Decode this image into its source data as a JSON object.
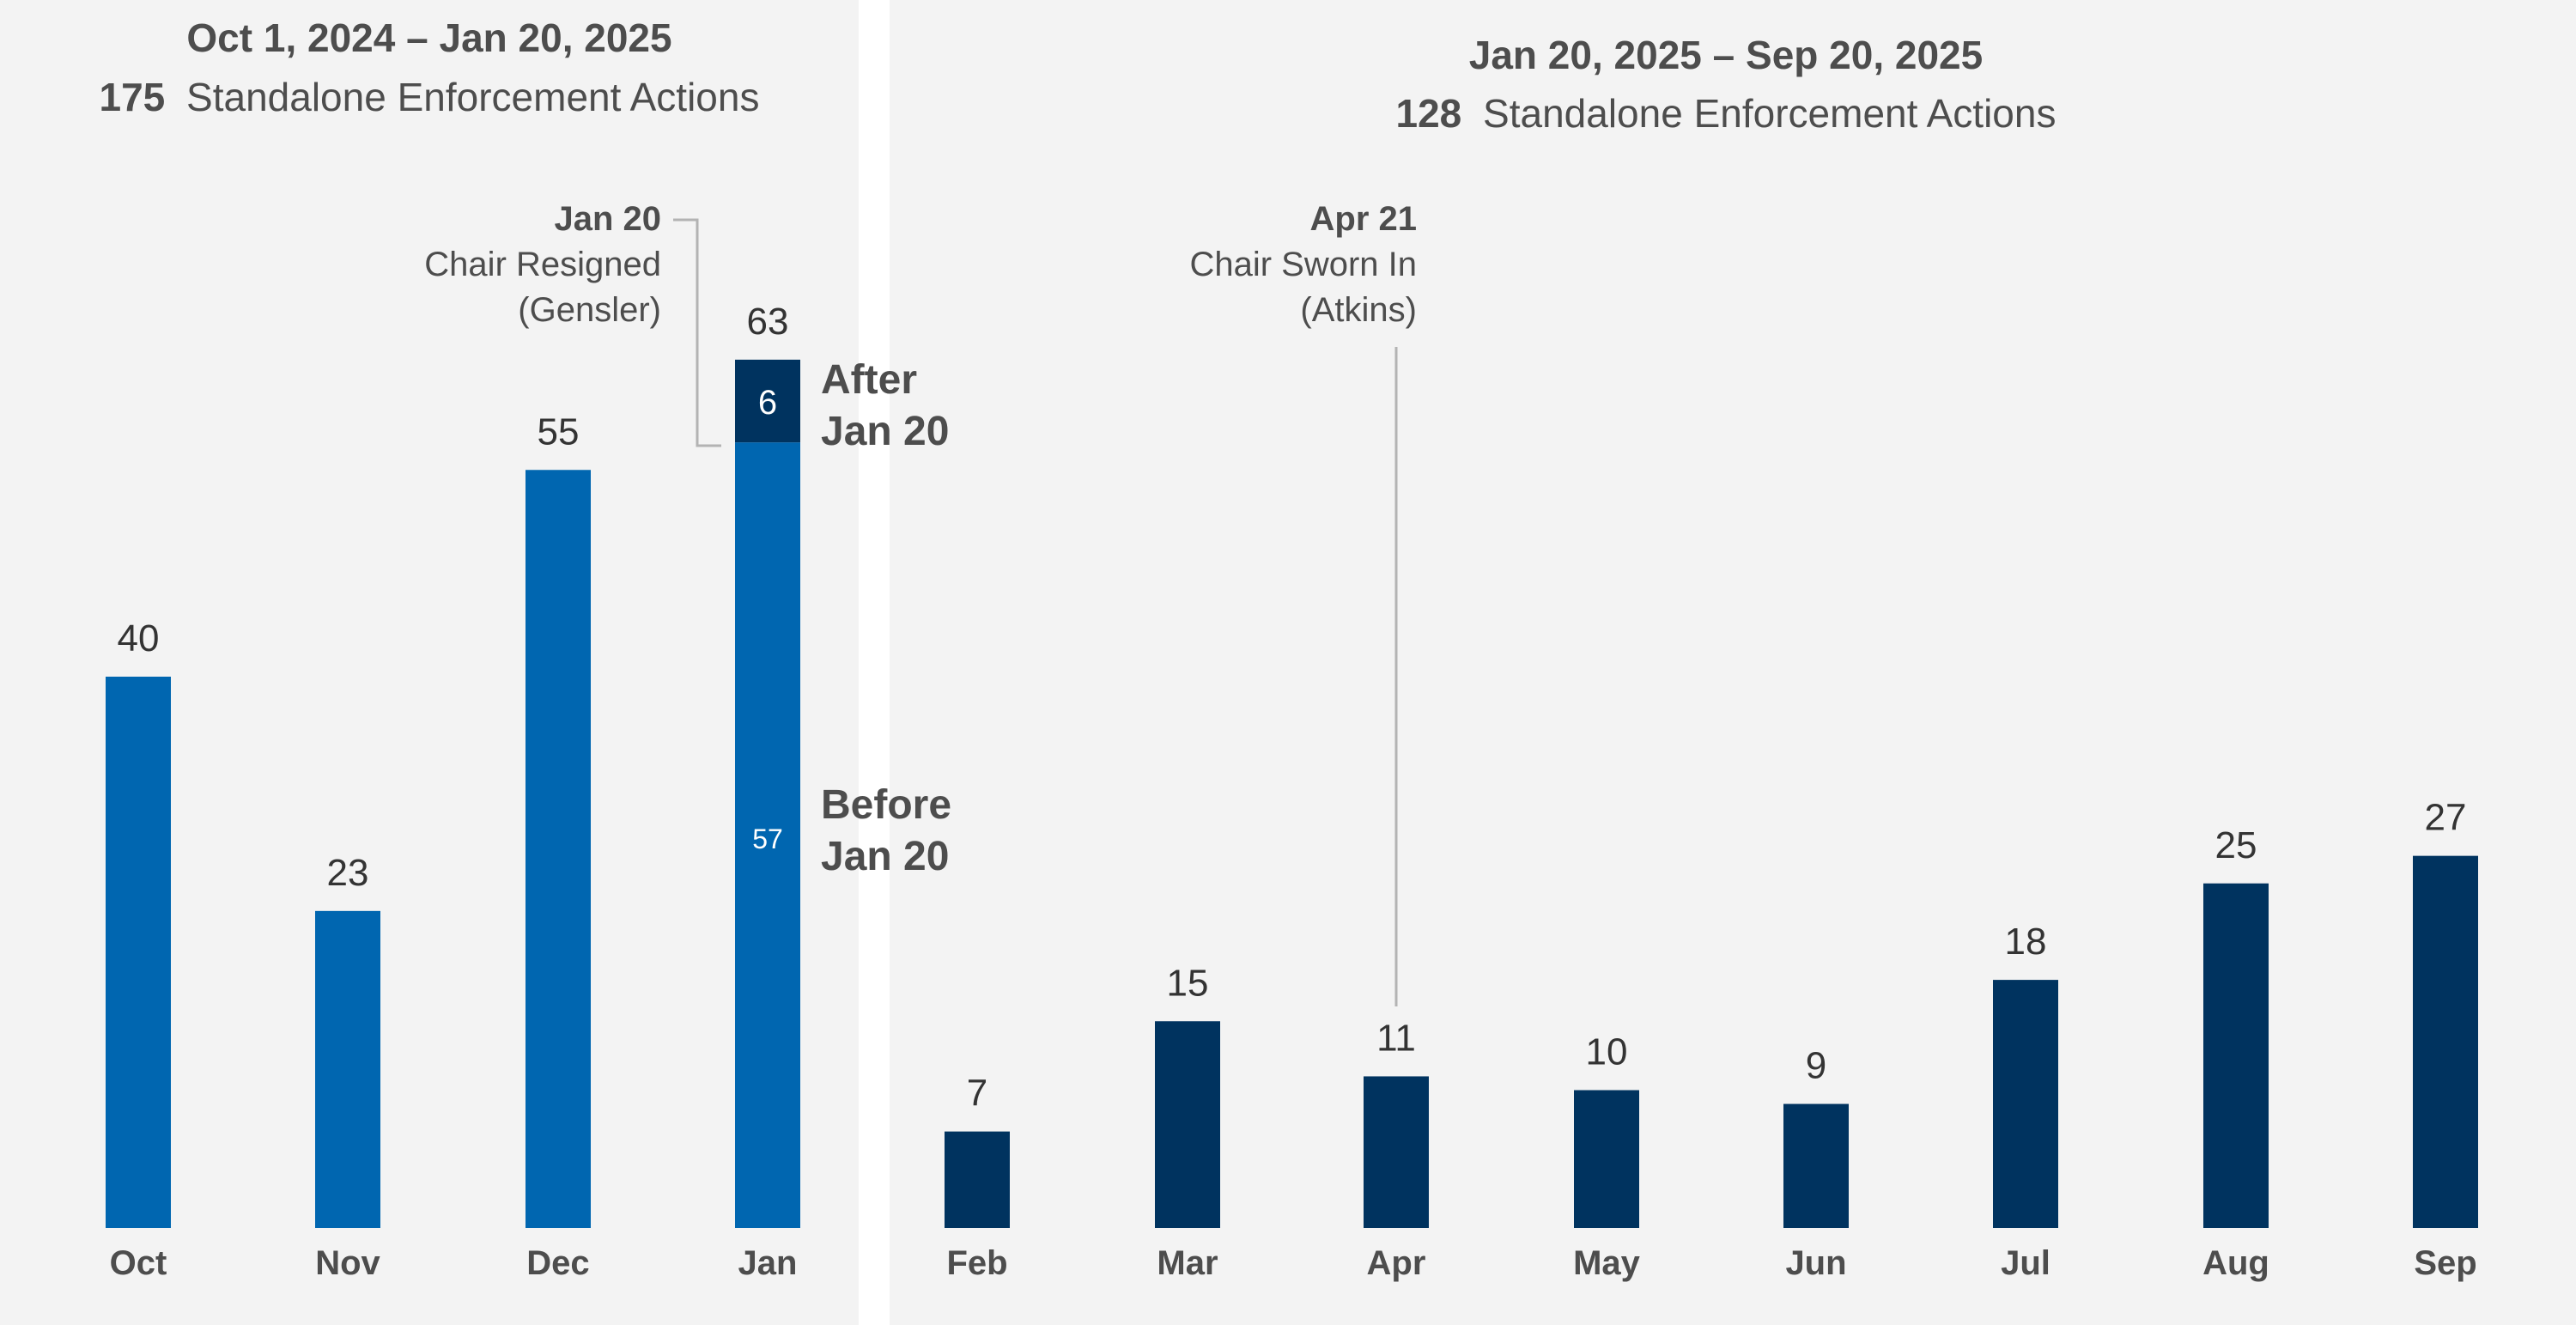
{
  "colors": {
    "pre_period_bar": "#0066b0",
    "post_period_bar": "#00335f",
    "panel_background": "#f3f3f3",
    "divider": "#ffffff",
    "text": "#4d4d4d"
  },
  "left_panel": {
    "date_range": "Oct 1, 2024 – Jan 20, 2025",
    "count": "175",
    "count_label": "Standalone Enforcement Actions"
  },
  "right_panel": {
    "date_range": "Jan 20, 2025 – Sep 20, 2025",
    "count": "128",
    "count_label": "Standalone Enforcement Actions"
  },
  "annotations": {
    "jan": {
      "date": "Jan 20",
      "line1": "Chair Resigned",
      "line2": "(Gensler)"
    },
    "apr": {
      "date": "Apr 21",
      "line1": "Chair Sworn In",
      "line2": "(Atkins)"
    }
  },
  "segment_labels": {
    "after_line1": "After",
    "after_line2": "Jan 20",
    "before_line1": "Before",
    "before_line2": "Jan 20"
  },
  "chart_data": {
    "type": "bar",
    "categories": [
      "Oct",
      "Nov",
      "Dec",
      "Jan",
      "Feb",
      "Mar",
      "Apr",
      "May",
      "Jun",
      "Jul",
      "Aug",
      "Sep"
    ],
    "values": [
      40,
      23,
      55,
      63,
      7,
      15,
      11,
      10,
      9,
      18,
      25,
      27
    ],
    "jan_stack": {
      "before": 57,
      "after": 6,
      "total": 63
    },
    "ylim": [
      0,
      63
    ],
    "grid": false,
    "title": "",
    "xlabel": "",
    "ylabel": ""
  }
}
